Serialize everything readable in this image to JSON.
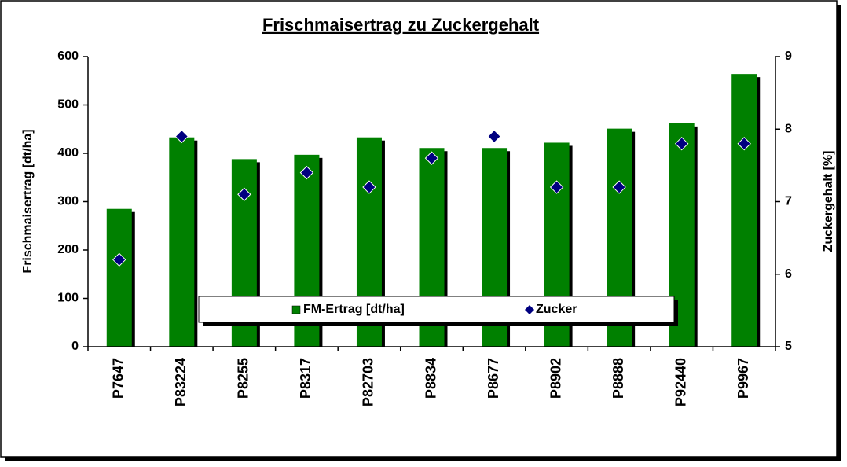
{
  "chart_data": {
    "type": "bar",
    "title": "Frischmaisertrag zu Zuckergehalt",
    "y_label": "Frischmaisertrag [dt/ha]",
    "y2_label": "Zuckergehalt [%]",
    "categories": [
      "P7647",
      "P83224",
      "P8255",
      "P8317",
      "P82703",
      "P8834",
      "P8677",
      "P8902",
      "P8888",
      "P92440",
      "P9967"
    ],
    "series": [
      {
        "name": "FM-Ertrag [dt/ha]",
        "color": "#008000",
        "values": [
          285,
          433,
          388,
          397,
          433,
          411,
          411,
          422,
          451,
          462,
          564
        ]
      },
      {
        "name": "Zucker",
        "color": "#000080",
        "axis": "y2",
        "marker": "diamond",
        "values": [
          6.2,
          7.9,
          7.1,
          7.4,
          7.2,
          7.6,
          7.9,
          7.2,
          7.2,
          7.8,
          7.8
        ]
      }
    ],
    "ylim": [
      0,
      600
    ],
    "yticks": [
      0,
      100,
      200,
      300,
      400,
      500,
      600
    ],
    "y2lim": [
      5,
      9
    ],
    "y2ticks": [
      5,
      6,
      7,
      8,
      9
    ],
    "legend": "bottom"
  }
}
